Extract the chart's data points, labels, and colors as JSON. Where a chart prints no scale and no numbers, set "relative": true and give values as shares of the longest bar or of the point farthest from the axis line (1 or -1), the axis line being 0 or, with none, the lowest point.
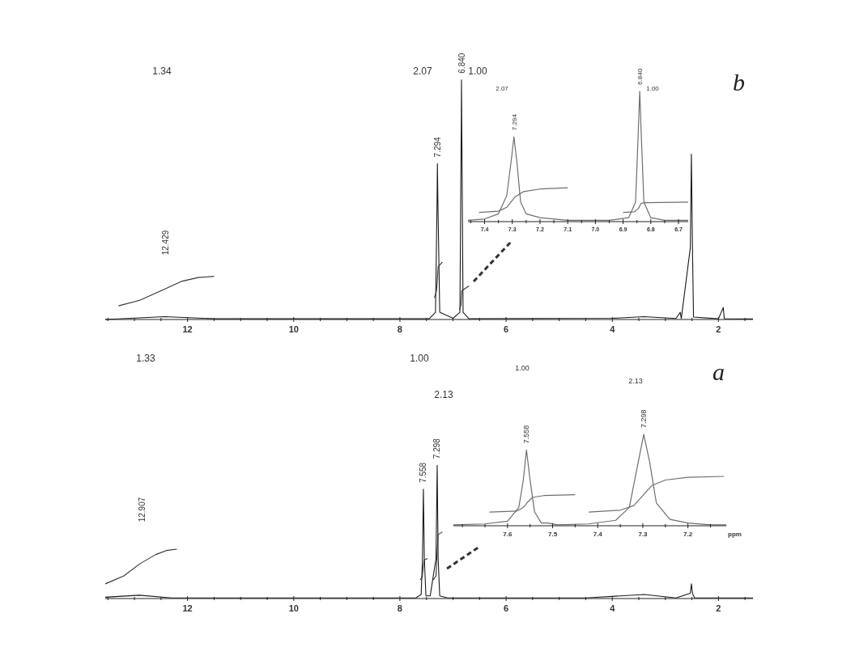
{
  "chart_data": [
    {
      "type": "line",
      "relative": true,
      "xlim": [
        13.55,
        1.35
      ],
      "xticks": [
        {
          "value": 13.5,
          "label": null
        },
        {
          "value": 13,
          "label": null
        },
        {
          "value": 12.5,
          "label": null
        },
        12,
        {
          "value": 11.5,
          "label": null
        },
        {
          "value": 11,
          "label": null
        },
        {
          "value": 10.5,
          "label": null
        },
        10,
        {
          "value": 9.5,
          "label": null
        },
        {
          "value": 9,
          "label": null
        },
        {
          "value": 8.5,
          "label": null
        },
        8,
        {
          "value": 7.5,
          "label": null
        },
        {
          "value": 7,
          "label": null
        },
        {
          "value": 6.5,
          "label": null
        },
        6,
        {
          "value": 5.5,
          "label": null
        },
        {
          "value": 5,
          "label": null
        },
        {
          "value": 4.5,
          "label": null
        },
        4,
        {
          "value": 3.5,
          "label": null
        },
        {
          "value": 3,
          "label": null
        },
        {
          "value": 2.5,
          "label": null
        },
        2,
        {
          "value": 1.5,
          "label": null
        }
      ],
      "series": [
        {
          "color": "#1a1a1a",
          "x": [
            13.55,
            12.429,
            11.5,
            7.45,
            7.33,
            7.3,
            7.294,
            7.285,
            7.25,
            7.0,
            6.87,
            6.845,
            6.84,
            6.835,
            6.81,
            6.7,
            4.0,
            3.4,
            2.8,
            2.72,
            2.7,
            2.53,
            2.51,
            2.49,
            2.47,
            2.0,
            1.91,
            1.89,
            1.35
          ],
          "values": [
            0.0,
            0.012,
            0.003,
            0.003,
            0.03,
            0.5,
            0.65,
            0.5,
            0.03,
            0.005,
            0.03,
            0.8,
            1,
            0.8,
            0.03,
            0.003,
            0.005,
            0.012,
            0.004,
            0.03,
            0.004,
            0.3,
            0.69,
            0.3,
            0.01,
            0.003,
            0.05,
            0.003,
            0.002
          ]
        },
        {
          "color": "#333333",
          "x": [
            13.3,
            12.9,
            12.5,
            12.1,
            11.8,
            11.5,
            9,
            7.35,
            7.31,
            7.294,
            7.28,
            7.2,
            7.0,
            6.88,
            6.85,
            6.835,
            6.7
          ],
          "values": [
            0.057,
            0.08,
            0.12,
            0.16,
            0.175,
            0.18,
            null,
            0.09,
            0.12,
            0.17,
            0.22,
            0.24,
            null,
            0.04,
            0.06,
            0.12,
            0.14
          ]
        }
      ],
      "annotations": [
        "1.34",
        "2.07",
        "1.00",
        "12.429",
        {
          "text": "7.294",
          "x": 7.294,
          "y": 0.65
        },
        {
          "text": "6.840",
          "x": 6.84,
          "y": 1
        },
        "b"
      ]
    },
    {
      "type": "line",
      "relative": true,
      "xlim": [
        7.46,
        6.665
      ],
      "xticks": [
        {
          "value": 7.45,
          "label": null
        },
        7.4,
        {
          "value": 7.35,
          "label": null
        },
        7.3,
        {
          "value": 7.25,
          "label": null
        },
        7.2,
        {
          "value": 7.15,
          "label": null
        },
        7.1,
        {
          "value": 7.05,
          "label": null
        },
        {
          "value": 7,
          "label": "7.0"
        },
        {
          "value": 6.95,
          "label": null
        },
        6.9,
        {
          "value": 6.85,
          "label": null
        },
        6.8,
        {
          "value": 6.75,
          "label": null
        },
        6.7
      ],
      "series": [
        {
          "color": "#6e6e6e",
          "x": [
            7.46,
            7.4,
            7.35,
            7.32,
            7.305,
            7.294,
            7.283,
            7.27,
            7.25,
            7.2,
            7.1,
            6.95,
            6.88,
            6.855,
            6.845,
            6.84,
            6.835,
            6.825,
            6.8,
            6.75,
            6.665
          ],
          "values": [
            0.01,
            0.02,
            0.06,
            0.2,
            0.45,
            0.65,
            0.45,
            0.15,
            0.06,
            0.03,
            0.01,
            0.01,
            0.03,
            0.15,
            0.7,
            1,
            0.7,
            0.15,
            0.03,
            0.01,
            0.01
          ]
        },
        {
          "color": "#6e6e6e",
          "x": [
            7.42,
            7.35,
            7.32,
            7.29,
            7.26,
            7.2,
            7.1,
            7.0,
            6.9,
            6.86,
            6.845,
            6.835,
            6.82,
            6.665
          ],
          "values": [
            0.07,
            0.08,
            0.11,
            0.19,
            0.23,
            0.25,
            0.26,
            null,
            0.07,
            0.075,
            0.1,
            0.14,
            0.145,
            0.15
          ]
        }
      ],
      "annotations": [
        "2.07",
        "1.00",
        {
          "text": "7.294",
          "x": 7.294,
          "y": 0.65
        },
        {
          "text": "6.840",
          "x": 6.84,
          "y": 1
        }
      ]
    },
    {
      "type": "line",
      "relative": true,
      "xlim": [
        13.55,
        1.35
      ],
      "xticks": [
        {
          "value": 13.5,
          "label": null
        },
        {
          "value": 13,
          "label": null
        },
        {
          "value": 12.5,
          "label": null
        },
        12,
        {
          "value": 11.5,
          "label": null
        },
        {
          "value": 11,
          "label": null
        },
        {
          "value": 10.5,
          "label": null
        },
        10,
        {
          "value": 9.5,
          "label": null
        },
        {
          "value": 9,
          "label": null
        },
        {
          "value": 8.5,
          "label": null
        },
        8,
        {
          "value": 7.5,
          "label": null
        },
        {
          "value": 7,
          "label": null
        },
        {
          "value": 6.5,
          "label": null
        },
        6,
        {
          "value": 5.5,
          "label": null
        },
        {
          "value": 5,
          "label": null
        },
        {
          "value": 4.5,
          "label": null
        },
        4,
        {
          "value": 3.5,
          "label": null
        },
        {
          "value": 3,
          "label": null
        },
        {
          "value": 2.5,
          "label": null
        },
        2,
        {
          "value": 1.5,
          "label": null
        }
      ],
      "series": [
        {
          "color": "#1a1a1a",
          "x": [
            13.55,
            12.907,
            12.3,
            7.7,
            7.6,
            7.575,
            7.558,
            7.54,
            7.51,
            7.43,
            7.32,
            7.298,
            7.28,
            7.25,
            7.1,
            4.5,
            3.4,
            2.8,
            2.53,
            2.51,
            2.49,
            2.45,
            1.35
          ],
          "values": [
            0.01,
            0.025,
            0.005,
            0.005,
            0.03,
            0.3,
            0.82,
            0.3,
            0.02,
            0.02,
            0.3,
            1,
            0.3,
            0.02,
            0.005,
            0.005,
            0.03,
            0.005,
            0.04,
            0.11,
            0.04,
            0.005,
            0.005
          ]
        },
        {
          "color": "#333333",
          "x": [
            13.55,
            13.2,
            12.9,
            12.6,
            12.4,
            12.2,
            10,
            7.62,
            7.58,
            7.56,
            7.54,
            7.48,
            7.45,
            7.37,
            7.32,
            7.3,
            7.28,
            7.2
          ],
          "values": [
            0.11,
            0.17,
            0.26,
            0.33,
            0.36,
            0.37,
            null,
            0.14,
            0.16,
            0.24,
            0.29,
            0.3,
            null,
            0.14,
            0.17,
            0.35,
            0.48,
            0.5
          ]
        }
      ],
      "annotations": [
        "1.33",
        "1.00",
        "2.13",
        "12.907",
        {
          "text": "7.558",
          "x": 7.558,
          "y": 0.82
        },
        {
          "text": "7.298",
          "x": 7.298,
          "y": 1
        },
        "a"
      ]
    },
    {
      "type": "line",
      "relative": true,
      "xlim": [
        7.72,
        7.115
      ],
      "xlabel": "ppm",
      "xticks": [
        {
          "value": 7.7,
          "label": null
        },
        {
          "value": 7.65,
          "label": null
        },
        7.6,
        {
          "value": 7.55,
          "label": null
        },
        7.5,
        {
          "value": 7.45,
          "label": null
        },
        7.4,
        {
          "value": 7.35,
          "label": null
        },
        7.3,
        {
          "value": 7.25,
          "label": null
        },
        7.2,
        {
          "value": 7.15,
          "label": null
        }
      ],
      "series": [
        {
          "color": "#6e6e6e",
          "x": [
            7.72,
            7.65,
            7.6,
            7.575,
            7.565,
            7.558,
            7.55,
            7.54,
            7.525,
            7.51,
            7.49,
            7.42,
            7.36,
            7.33,
            7.31,
            7.298,
            7.285,
            7.27,
            7.24,
            7.2,
            7.15,
            7.115
          ],
          "values": [
            0.01,
            0.02,
            0.05,
            0.2,
            0.5,
            0.83,
            0.5,
            0.15,
            0.03,
            0.03,
            0.01,
            0.02,
            0.06,
            0.2,
            0.7,
            1,
            0.7,
            0.25,
            0.07,
            0.03,
            0.01,
            0.01
          ]
        },
        {
          "color": "#6e6e6e",
          "x": [
            7.64,
            7.58,
            7.565,
            7.555,
            7.545,
            7.52,
            7.45,
            7.43,
            7.42,
            7.35,
            7.32,
            7.3,
            7.28,
            7.25,
            7.2,
            7.12
          ],
          "values": [
            0.15,
            0.16,
            0.2,
            0.26,
            0.31,
            0.33,
            0.34,
            null,
            0.15,
            0.17,
            0.22,
            0.33,
            0.44,
            0.5,
            0.53,
            0.54
          ]
        }
      ],
      "annotations": [
        "1.00",
        "2.13",
        {
          "text": "7.558",
          "x": 7.558,
          "y": 0.83
        },
        {
          "text": "7.298",
          "x": 7.298,
          "y": 1
        }
      ]
    }
  ]
}
